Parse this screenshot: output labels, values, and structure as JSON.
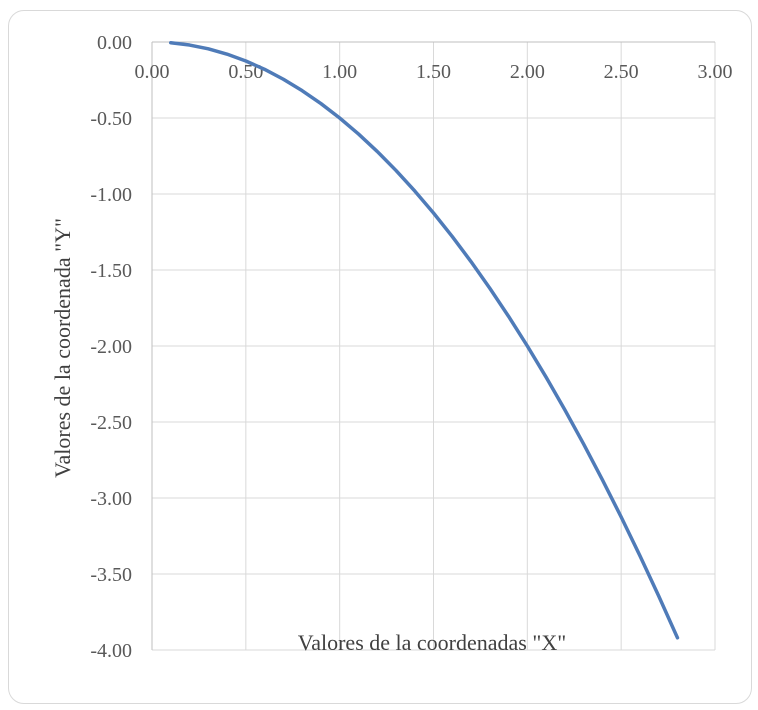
{
  "chart_data": {
    "type": "line",
    "xlabel": "Valores de la coordenadas  \"X\"",
    "ylabel": "Valores de la coordenada  \"Y\"",
    "xlim": [
      0,
      3
    ],
    "ylim": [
      -4,
      0
    ],
    "x_ticks": [
      "0.00",
      "0.50",
      "1.00",
      "1.50",
      "2.00",
      "2.50",
      "3.00"
    ],
    "y_ticks": [
      "0.00",
      "-0.50",
      "-1.00",
      "-1.50",
      "-2.00",
      "-2.50",
      "-3.00",
      "-3.50",
      "-4.00"
    ],
    "x_axis_position": "top",
    "grid": true,
    "series": [
      {
        "color": "#4f7bb8",
        "x": [
          0.1,
          0.2,
          0.3,
          0.4,
          0.5,
          0.6,
          0.7,
          0.8,
          0.9,
          1.0,
          1.1,
          1.2,
          1.3,
          1.4,
          1.5,
          1.6,
          1.7,
          1.8,
          1.9,
          2.0,
          2.1,
          2.2,
          2.3,
          2.4,
          2.5,
          2.6,
          2.7,
          2.8
        ],
        "y": [
          -0.005,
          -0.02,
          -0.045,
          -0.08,
          -0.125,
          -0.18,
          -0.245,
          -0.32,
          -0.405,
          -0.5,
          -0.605,
          -0.72,
          -0.845,
          -0.98,
          -1.125,
          -1.28,
          -1.445,
          -1.62,
          -1.805,
          -2.0,
          -2.205,
          -2.42,
          -2.645,
          -2.88,
          -3.125,
          -3.38,
          -3.645,
          -3.92
        ]
      }
    ]
  }
}
